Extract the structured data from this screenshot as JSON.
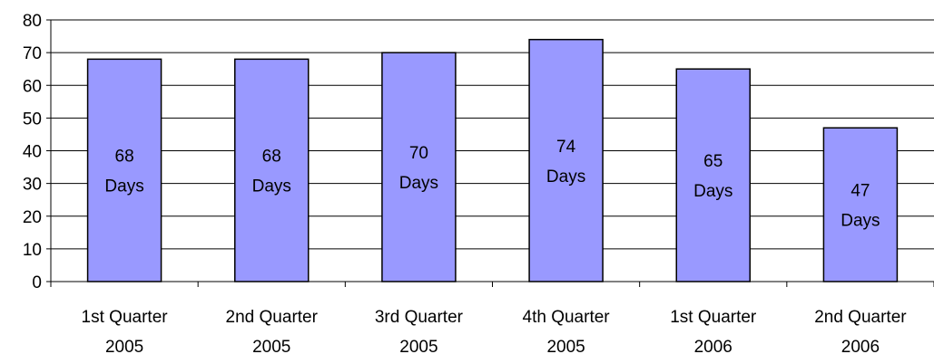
{
  "chart_data": {
    "type": "bar",
    "title": "",
    "xlabel": "",
    "ylabel": "",
    "ylim": [
      0,
      80
    ],
    "yticks": [
      0,
      10,
      20,
      30,
      40,
      50,
      60,
      70,
      80
    ],
    "grid": true,
    "legend": "none",
    "categories": [
      [
        "1st Quarter",
        "2005"
      ],
      [
        "2nd Quarter",
        "2005"
      ],
      [
        "3rd Quarter",
        "2005"
      ],
      [
        "4th Quarter",
        "2005"
      ],
      [
        "1st Quarter",
        "2006"
      ],
      [
        "2nd Quarter",
        "2006"
      ]
    ],
    "values": [
      68,
      68,
      70,
      74,
      65,
      47
    ],
    "data_labels": [
      [
        "68",
        "Days"
      ],
      [
        "68",
        "Days"
      ],
      [
        "70",
        "Days"
      ],
      [
        "74",
        "Days"
      ],
      [
        "65",
        "Days"
      ],
      [
        "47",
        "Days"
      ]
    ],
    "colors": {
      "bar_fill": "#9999ff",
      "bar_stroke": "#000000",
      "grid": "#000000",
      "axis": "#000000"
    }
  }
}
